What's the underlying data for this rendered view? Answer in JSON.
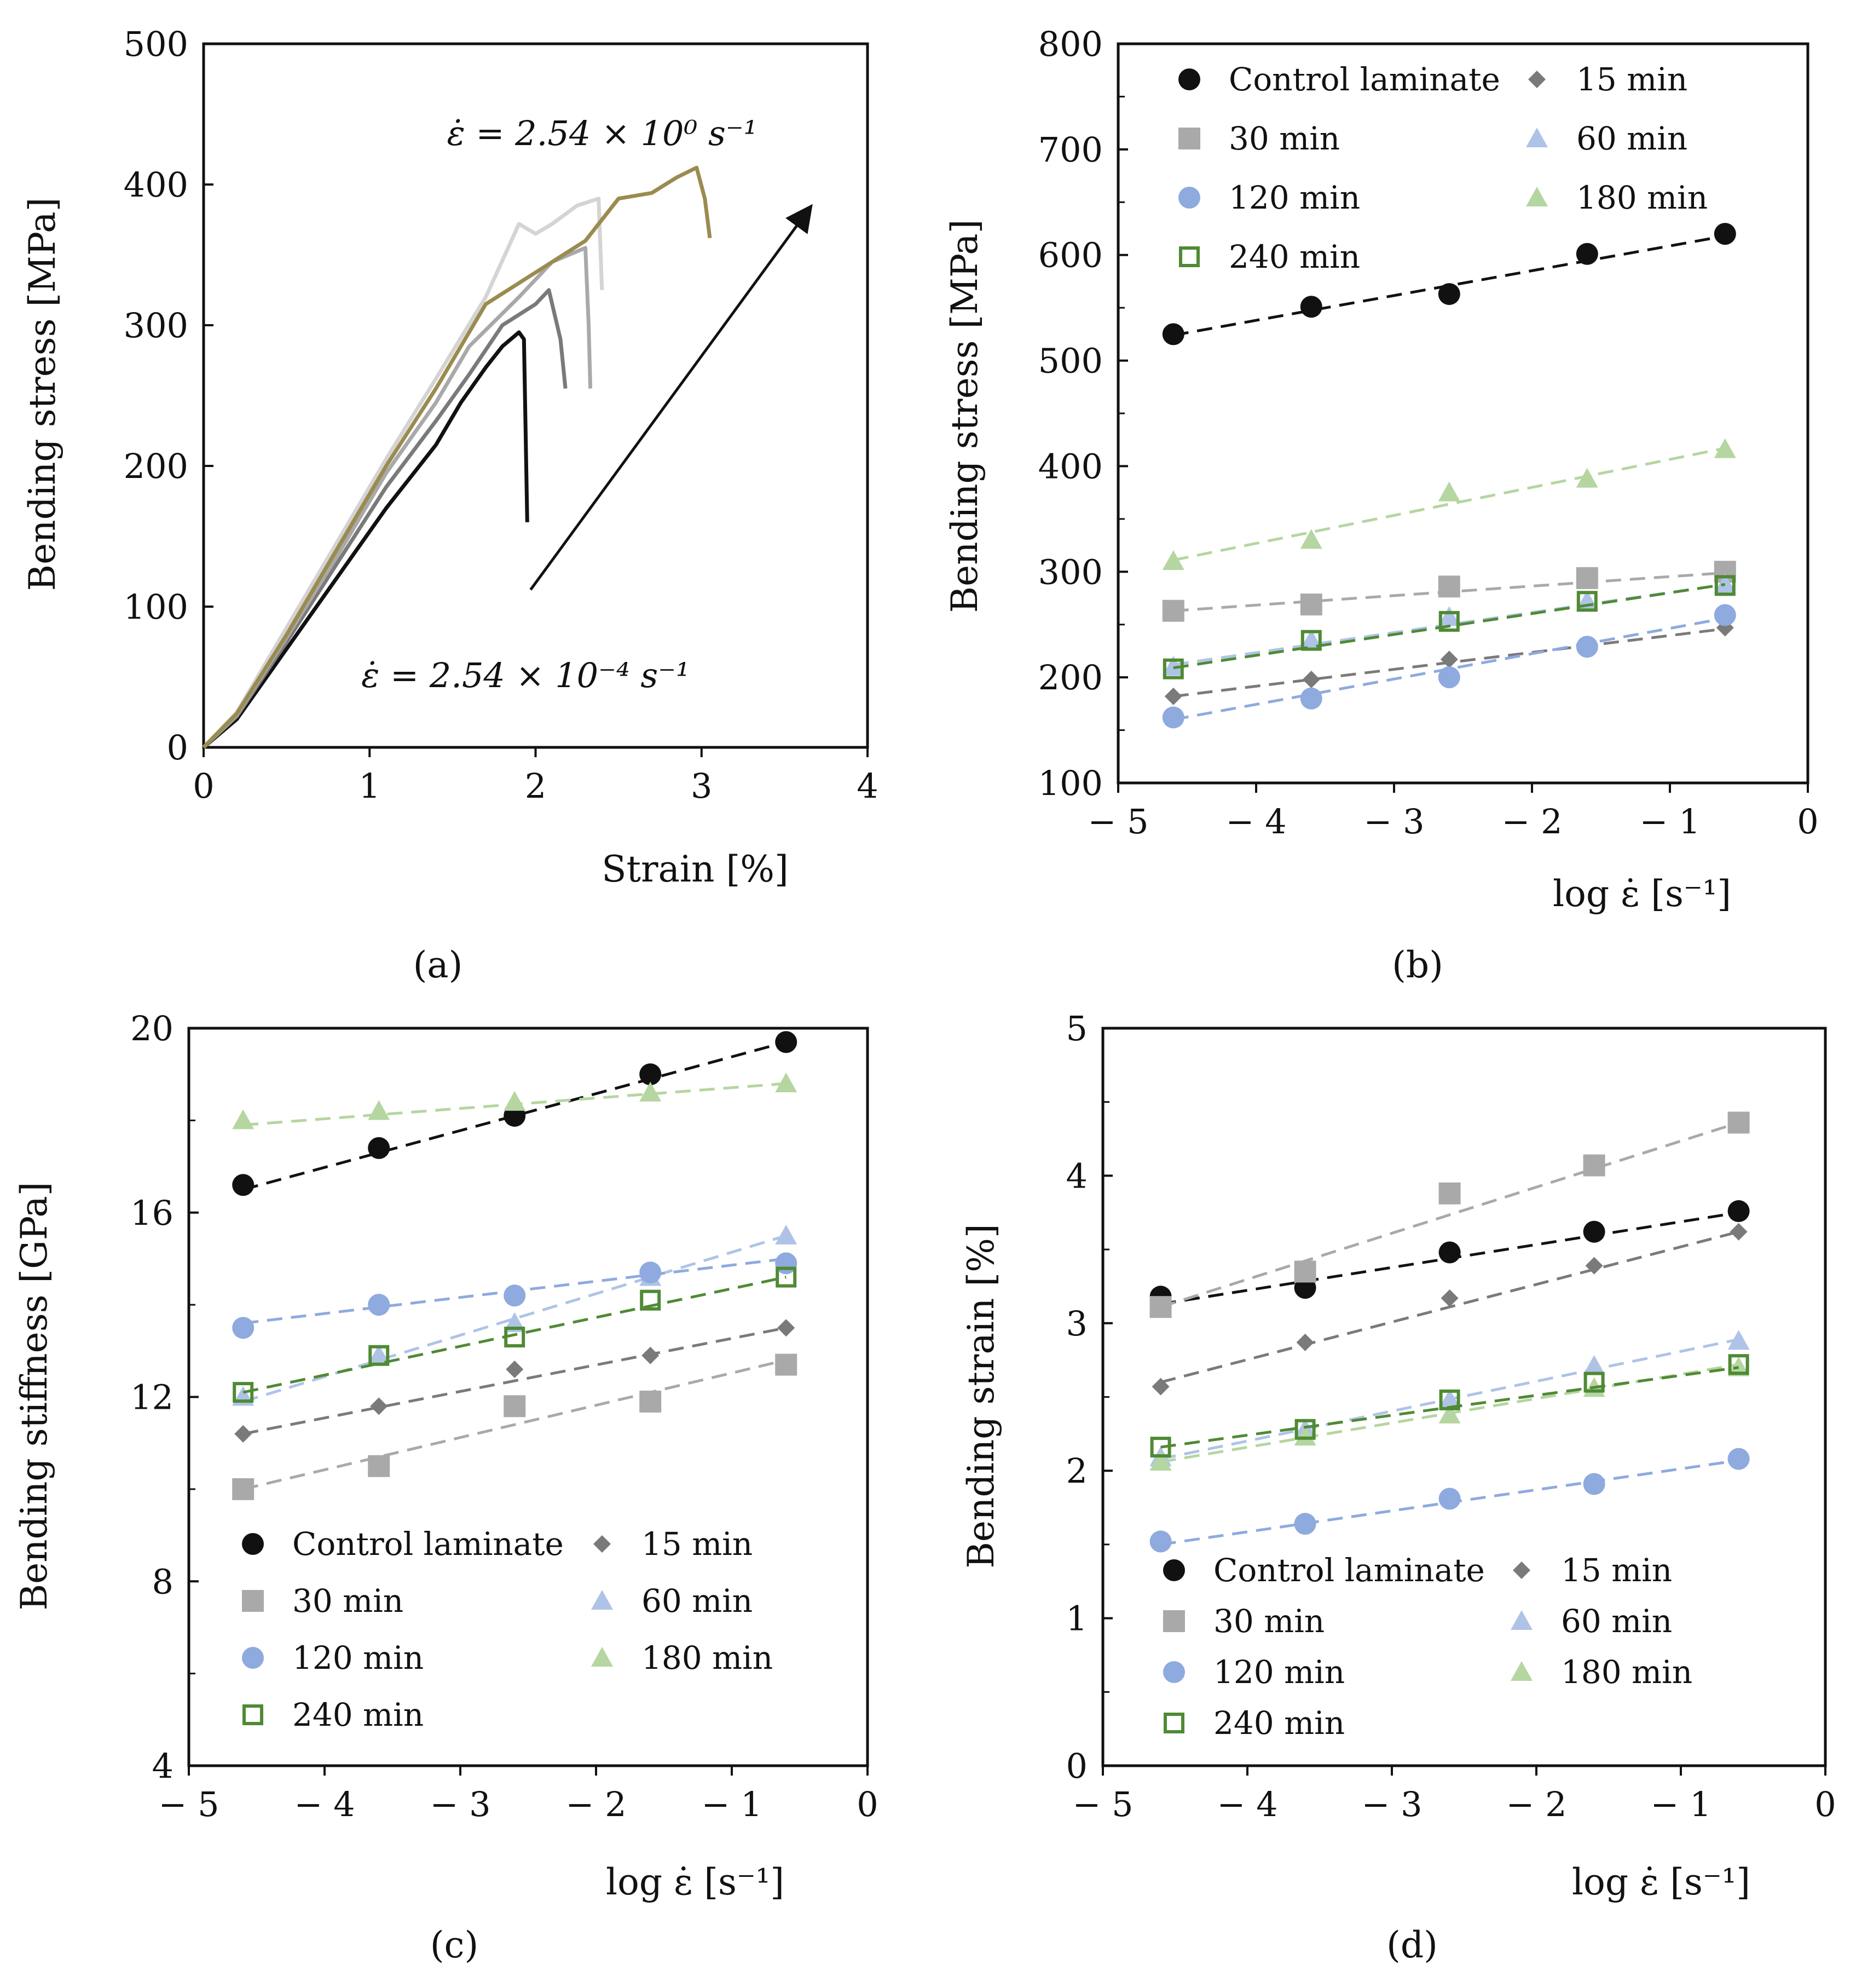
{
  "colors": {
    "control": "#111111",
    "m15": "#7a7a7a",
    "m30": "#a9a9a9",
    "m60": "#aec3e6",
    "m120": "#8eaade",
    "m180": "#b5d6a0",
    "m240": "#4f8a34",
    "c_light1": "#d4d4d4",
    "c_light2": "#bdbdbd",
    "c_gold": "#9a8b4f"
  },
  "legend": {
    "control": "Control laminate",
    "m15": "15 min",
    "m30": "30 min",
    "m60": "60 min",
    "m120": "120 min",
    "m180": "180 min",
    "m240": "240 min"
  },
  "chart_data": [
    {
      "id": "a",
      "type": "line",
      "panel_label": "(a)",
      "xlabel": "Strain [%]",
      "ylabel": "Bending stress [MPa]",
      "xlim": [
        0,
        4
      ],
      "ylim": [
        0,
        500
      ],
      "xticks": [
        "0",
        "1",
        "2",
        "3",
        "4"
      ],
      "yticks": [
        "0",
        "100",
        "200",
        "300",
        "400",
        "500"
      ],
      "annotations": {
        "high_rate": "ε̇ = 2.54 × 10⁰ s⁻¹",
        "low_rate": "ε̇ = 2.54 × 10⁻⁴ s⁻¹"
      },
      "arrow": {
        "from": [
          1.97,
          112
        ],
        "to": [
          3.65,
          383
        ]
      },
      "series": [
        {
          "key": "control",
          "points": [
            [
              0,
              0
            ],
            [
              0.2,
              20
            ],
            [
              0.5,
              70
            ],
            [
              0.8,
              120
            ],
            [
              1.1,
              170
            ],
            [
              1.4,
              215
            ],
            [
              1.55,
              245
            ],
            [
              1.7,
              270
            ],
            [
              1.8,
              285
            ],
            [
              1.9,
              295
            ],
            [
              1.93,
              290
            ],
            [
              1.95,
              160
            ]
          ]
        },
        {
          "key": "m15",
          "points": [
            [
              0,
              0
            ],
            [
              0.2,
              22
            ],
            [
              0.5,
              75
            ],
            [
              0.8,
              130
            ],
            [
              1.1,
              185
            ],
            [
              1.4,
              232
            ],
            [
              1.6,
              265
            ],
            [
              1.8,
              300
            ],
            [
              2.0,
              315
            ],
            [
              2.08,
              325
            ],
            [
              2.15,
              290
            ],
            [
              2.18,
              255
            ]
          ]
        },
        {
          "key": "m30",
          "points": [
            [
              0,
              0
            ],
            [
              0.2,
              23
            ],
            [
              0.5,
              78
            ],
            [
              0.8,
              135
            ],
            [
              1.1,
              195
            ],
            [
              1.4,
              245
            ],
            [
              1.6,
              285
            ],
            [
              1.9,
              320
            ],
            [
              2.1,
              345
            ],
            [
              2.3,
              355
            ],
            [
              2.32,
              300
            ],
            [
              2.33,
              255
            ]
          ]
        },
        {
          "key": "c_light1",
          "points": [
            [
              0,
              0
            ],
            [
              0.2,
              25
            ],
            [
              0.5,
              85
            ],
            [
              0.8,
              145
            ],
            [
              1.1,
              205
            ],
            [
              1.4,
              262
            ],
            [
              1.7,
              320
            ],
            [
              1.9,
              372
            ],
            [
              2.0,
              365
            ],
            [
              2.1,
              372
            ],
            [
              2.25,
              385
            ],
            [
              2.38,
              390
            ],
            [
              2.4,
              325
            ]
          ]
        },
        {
          "key": "c_gold",
          "points": [
            [
              0,
              0
            ],
            [
              0.2,
              24
            ],
            [
              0.5,
              80
            ],
            [
              0.8,
              140
            ],
            [
              1.1,
              200
            ],
            [
              1.4,
              255
            ],
            [
              1.7,
              315
            ],
            [
              1.9,
              330
            ],
            [
              2.1,
              345
            ],
            [
              2.3,
              360
            ],
            [
              2.5,
              390
            ],
            [
              2.7,
              394
            ],
            [
              2.85,
              405
            ],
            [
              2.97,
              412
            ],
            [
              3.02,
              390
            ],
            [
              3.05,
              362
            ]
          ]
        }
      ]
    },
    {
      "id": "b",
      "type": "scatter",
      "panel_label": "(b)",
      "xlabel": "log ε̇ [s⁻¹]",
      "ylabel": "Bending stress [MPa]",
      "xlim": [
        -5,
        0
      ],
      "ylim": [
        100,
        800
      ],
      "xticks": [
        "− 5",
        "− 4",
        "− 3",
        "− 2",
        "− 1",
        "0"
      ],
      "yticks": [
        "100",
        "200",
        "300",
        "400",
        "500",
        "600",
        "700",
        "800"
      ],
      "x": [
        -4.6,
        -3.6,
        -2.6,
        -1.6,
        -0.6
      ],
      "series": [
        {
          "key": "control",
          "values": [
            525,
            551,
            563,
            601,
            620
          ],
          "fit": [
            524,
            618
          ]
        },
        {
          "key": "m15",
          "values": [
            182,
            198,
            217,
            229,
            247
          ],
          "fit": [
            182,
            246
          ]
        },
        {
          "key": "m30",
          "values": [
            263,
            269,
            286,
            294,
            300
          ],
          "fit": [
            263,
            299
          ]
        },
        {
          "key": "m60",
          "values": [
            210,
            235,
            257,
            272,
            288
          ],
          "fit": [
            212,
            288
          ]
        },
        {
          "key": "m120",
          "values": [
            162,
            180,
            200,
            229,
            259
          ],
          "fit": [
            160,
            256
          ]
        },
        {
          "key": "m180",
          "values": [
            310,
            330,
            375,
            388,
            416
          ],
          "fit": [
            311,
            417
          ]
        },
        {
          "key": "m240",
          "values": [
            208,
            235,
            253,
            272,
            287
          ],
          "fit": [
            209,
            288
          ]
        }
      ]
    },
    {
      "id": "c",
      "type": "scatter",
      "panel_label": "(c)",
      "xlabel": "log ε̇ [s⁻¹]",
      "ylabel": "Bending stiffness [GPa]",
      "xlim": [
        -5,
        0
      ],
      "ylim": [
        4,
        20
      ],
      "xticks": [
        "− 5",
        "− 4",
        "− 3",
        "− 2",
        "− 1",
        "0"
      ],
      "yticks": [
        "4",
        "8",
        "12",
        "16",
        "20"
      ],
      "x": [
        -4.6,
        -3.6,
        -2.6,
        -1.6,
        -0.6
      ],
      "series": [
        {
          "key": "control",
          "values": [
            16.6,
            17.4,
            18.1,
            19.0,
            19.7
          ],
          "fit": [
            16.5,
            19.7
          ]
        },
        {
          "key": "m15",
          "values": [
            11.2,
            11.8,
            12.6,
            12.9,
            13.5
          ],
          "fit": [
            11.2,
            13.5
          ]
        },
        {
          "key": "m30",
          "values": [
            10.0,
            10.5,
            11.8,
            11.9,
            12.7
          ],
          "fit": [
            10.0,
            12.8
          ]
        },
        {
          "key": "m60",
          "values": [
            12.0,
            12.9,
            13.6,
            14.6,
            15.5
          ],
          "fit": [
            11.9,
            15.5
          ]
        },
        {
          "key": "m120",
          "values": [
            13.5,
            14.0,
            14.2,
            14.7,
            14.9
          ],
          "fit": [
            13.6,
            15.0
          ]
        },
        {
          "key": "m180",
          "values": [
            18.0,
            18.2,
            18.4,
            18.6,
            18.8
          ],
          "fit": [
            17.9,
            18.8
          ]
        },
        {
          "key": "m240",
          "values": [
            12.1,
            12.9,
            13.3,
            14.1,
            14.6
          ],
          "fit": [
            12.1,
            14.6
          ]
        }
      ]
    },
    {
      "id": "d",
      "type": "scatter",
      "panel_label": "(d)",
      "xlabel": "log ε̇ [s⁻¹]",
      "ylabel": "Bending strain [%]",
      "xlim": [
        -5,
        0
      ],
      "ylim": [
        0,
        5
      ],
      "xticks": [
        "− 5",
        "− 4",
        "− 3",
        "− 2",
        "− 1",
        "0"
      ],
      "yticks": [
        "0",
        "1",
        "2",
        "3",
        "4",
        "5"
      ],
      "x": [
        -4.6,
        -3.6,
        -2.6,
        -1.6,
        -0.6
      ],
      "series": [
        {
          "key": "control",
          "values": [
            3.18,
            3.24,
            3.48,
            3.62,
            3.76
          ],
          "fit": [
            3.13,
            3.75
          ]
        },
        {
          "key": "m15",
          "values": [
            2.57,
            2.87,
            3.17,
            3.39,
            3.62
          ],
          "fit": [
            2.6,
            3.62
          ]
        },
        {
          "key": "m30",
          "values": [
            3.11,
            3.35,
            3.88,
            4.07,
            4.36
          ],
          "fit": [
            3.11,
            4.36
          ]
        },
        {
          "key": "m60",
          "values": [
            2.09,
            2.28,
            2.48,
            2.71,
            2.88
          ],
          "fit": [
            2.08,
            2.89
          ]
        },
        {
          "key": "m120",
          "values": [
            1.52,
            1.64,
            1.81,
            1.91,
            2.08
          ],
          "fit": [
            1.5,
            2.07
          ]
        },
        {
          "key": "m180",
          "values": [
            2.06,
            2.23,
            2.38,
            2.56,
            2.7
          ],
          "fit": [
            2.06,
            2.72
          ]
        },
        {
          "key": "m240",
          "values": [
            2.16,
            2.28,
            2.48,
            2.6,
            2.72
          ],
          "fit": [
            2.16,
            2.7
          ]
        }
      ]
    }
  ]
}
